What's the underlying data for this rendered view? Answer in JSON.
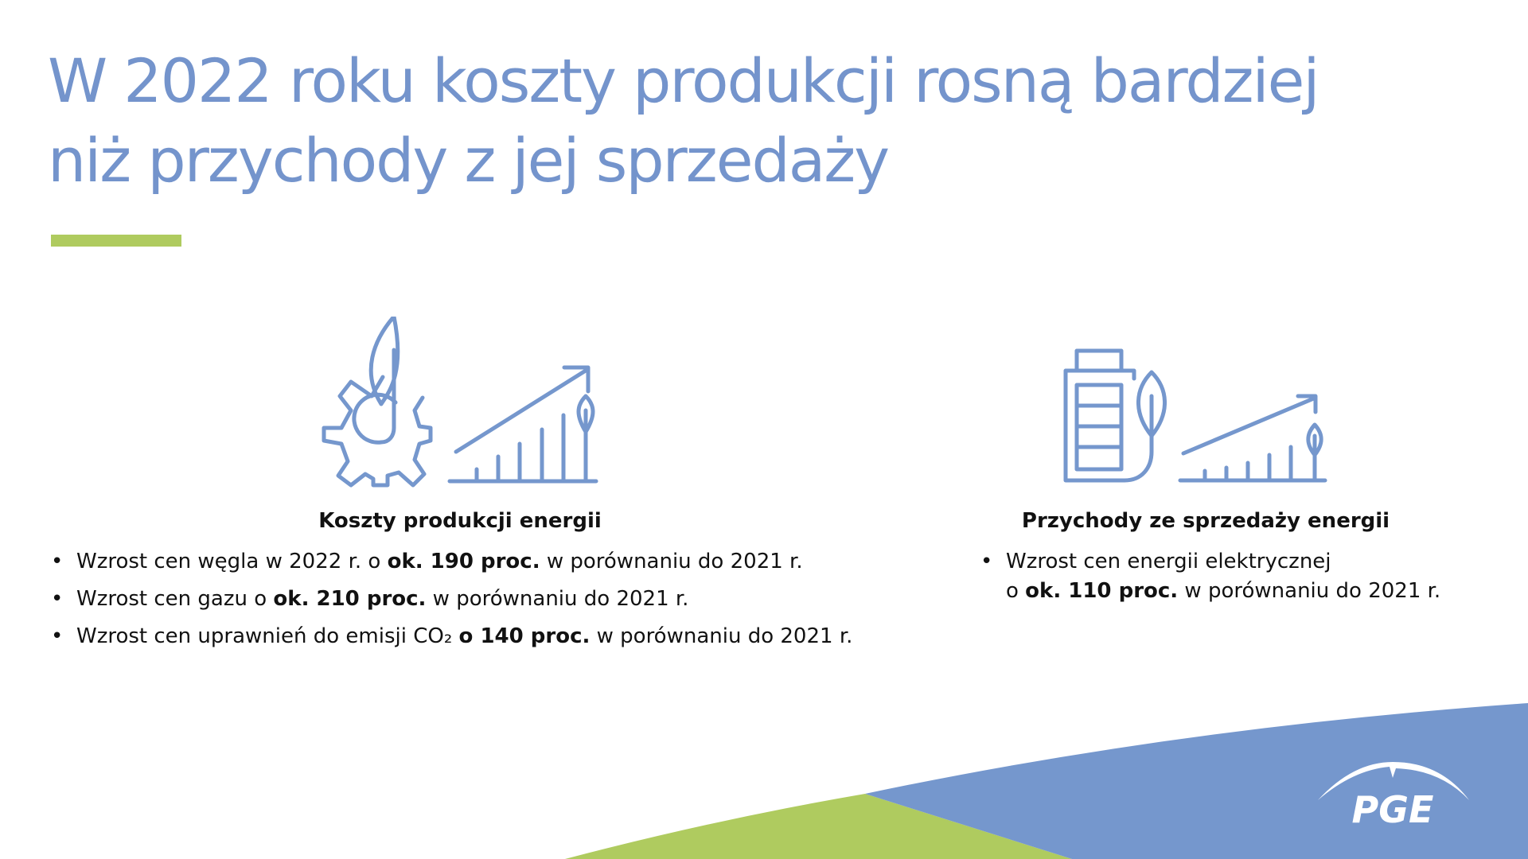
{
  "title": {
    "line1": "W 2022 roku koszty produkcji rosną bardziej",
    "line2": "niż przychody z jej sprzedaży"
  },
  "colors": {
    "title_blue": "#7494cc",
    "accent_green": "#afcb5f",
    "shape_blue": "#7597cd",
    "icon_blue": "#7597cd"
  },
  "left": {
    "icon": "gear-leaf-growth-chart-icon",
    "heading": "Koszty produkcji energii",
    "bullets": [
      {
        "pre": "Wzrost cen węgla w 2022 r. o ",
        "bold": "ok. 190 proc.",
        "post": " w porównaniu do 2021 r."
      },
      {
        "pre": "Wzrost cen gazu o ",
        "bold": "ok. 210 proc.",
        "post": " w  porównaniu do 2021 r."
      },
      {
        "pre": "Wzrost cen uprawnień do emisji CO₂ ",
        "bold": "o 140 proc.",
        "post": " w porównaniu do 2021 r."
      }
    ]
  },
  "right": {
    "icon": "battery-leaf-growth-chart-icon",
    "heading": "Przychody ze sprzedaży energii",
    "bullets": [
      {
        "line1": "Wzrost cen energii elektrycznej",
        "pre": "o ",
        "bold": "ok. 110 proc.",
        "post": " w porównaniu do 2021 r."
      }
    ]
  },
  "logo": {
    "text": "PGE"
  }
}
